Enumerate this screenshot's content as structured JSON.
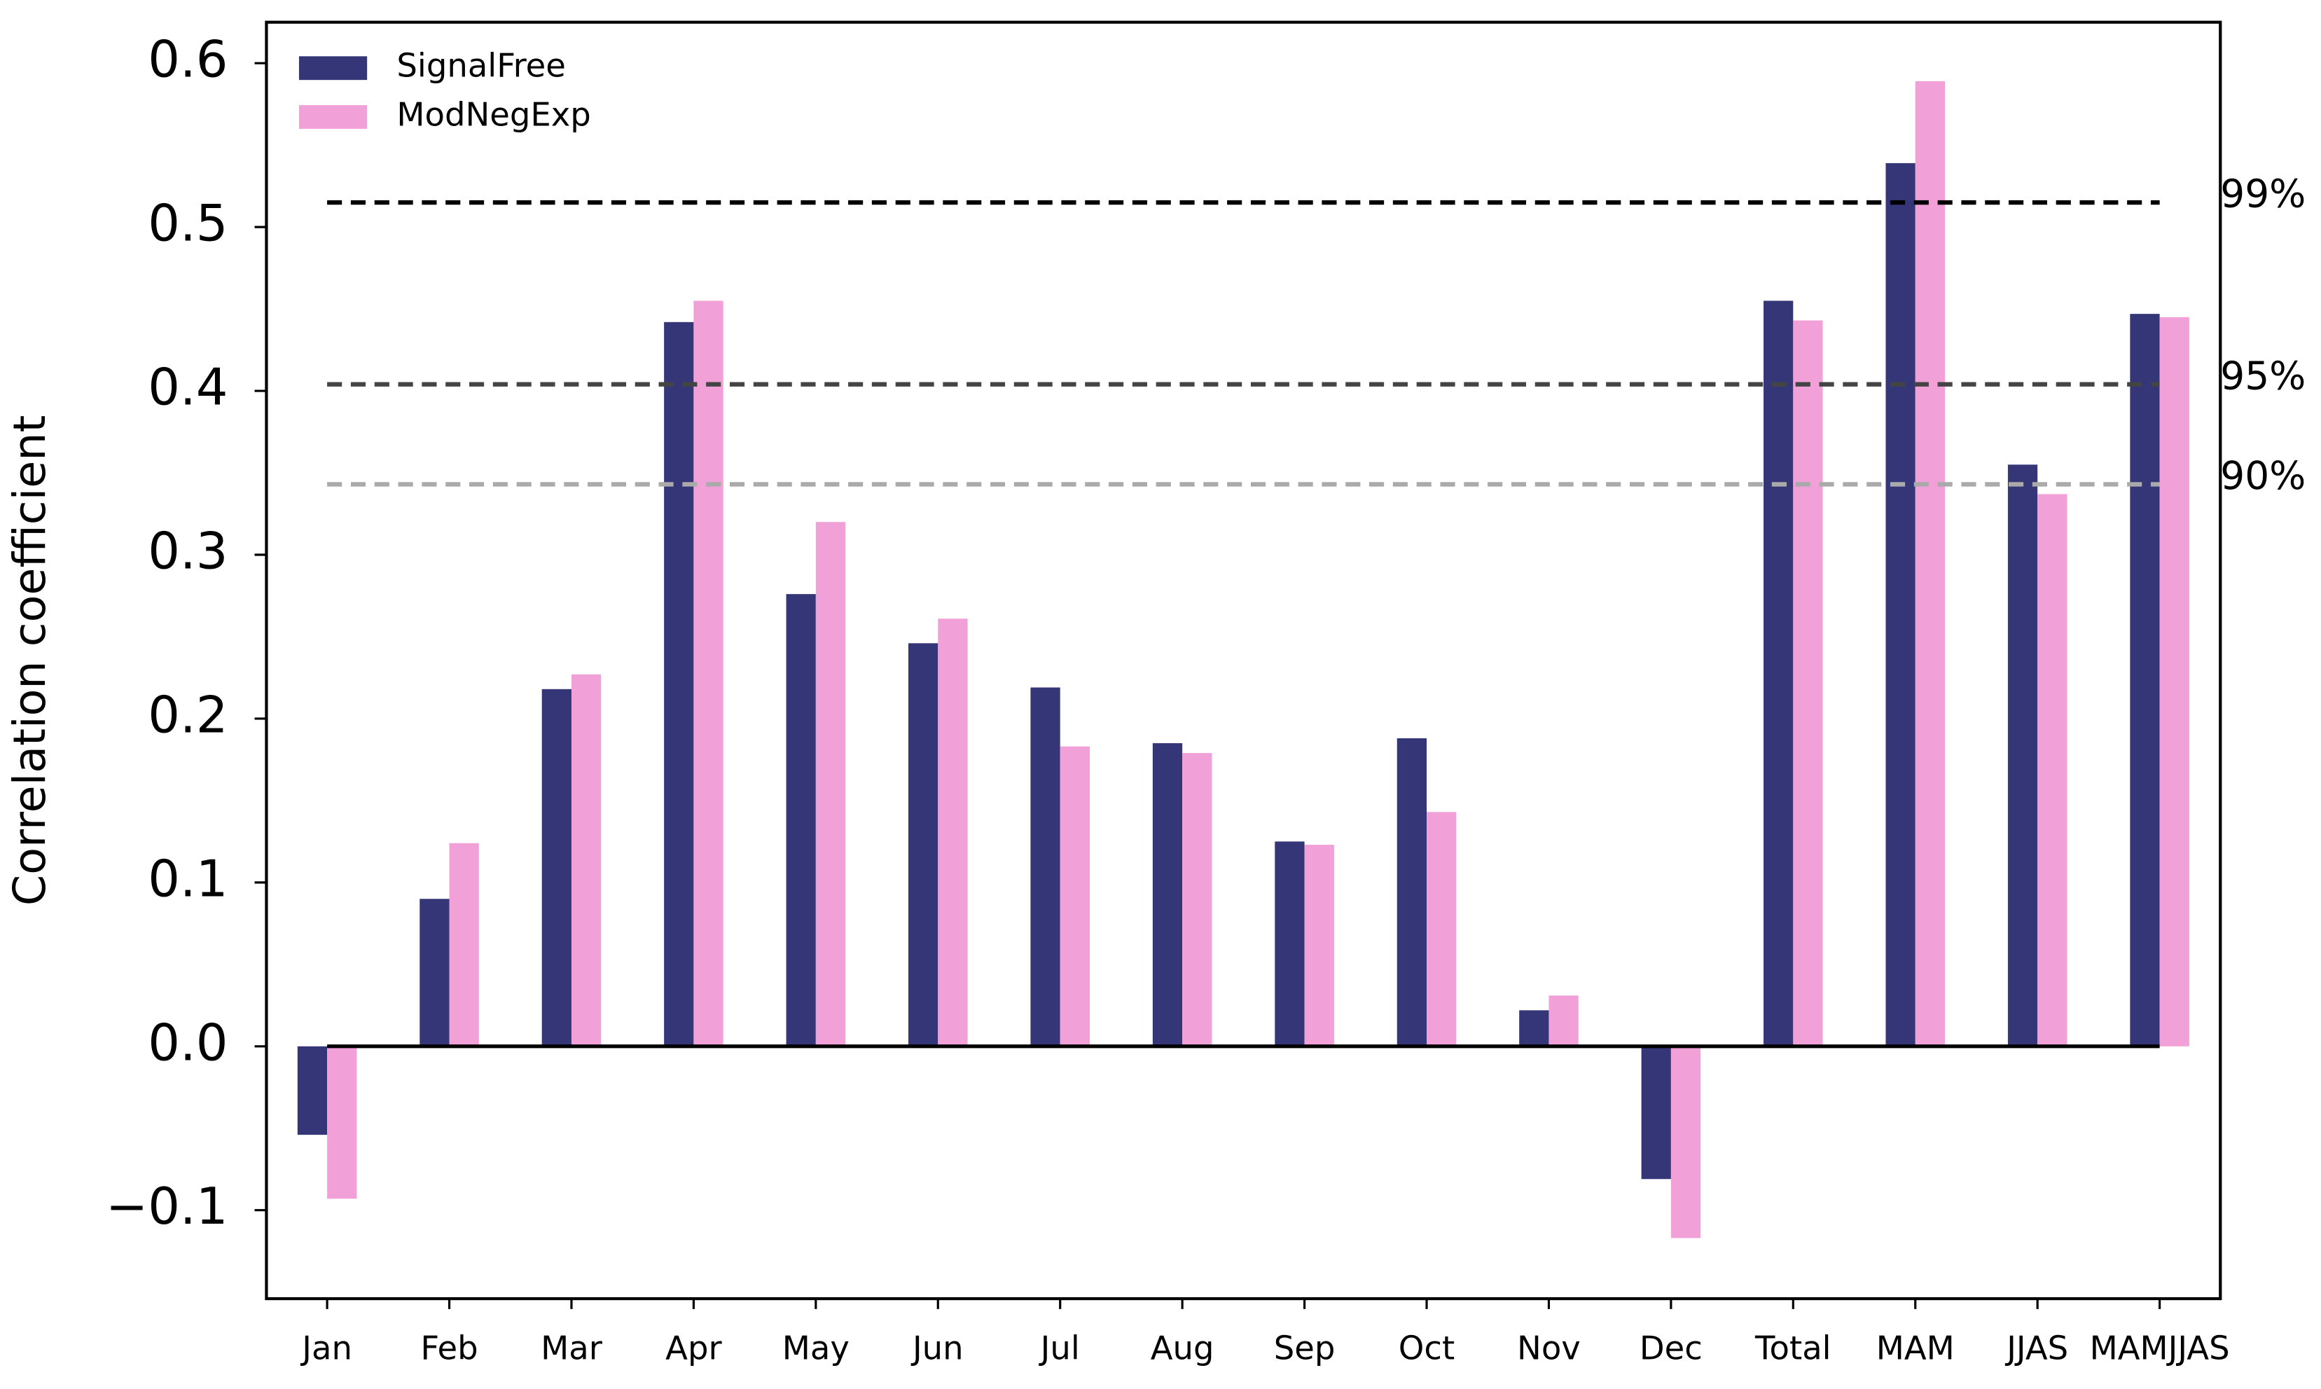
{
  "chart_data": {
    "type": "bar",
    "y_label": "Correlation coefficient",
    "categories": [
      "Jan",
      "Feb",
      "Mar",
      "Apr",
      "May",
      "Jun",
      "Jul",
      "Aug",
      "Sep",
      "Oct",
      "Nov",
      "Dec",
      "Total",
      "MAM",
      "JJAS",
      "MAMJJAS"
    ],
    "series": [
      {
        "name": "SignalFree",
        "color": "#343677",
        "values": [
          -0.054,
          0.09,
          0.218,
          0.442,
          0.276,
          0.246,
          0.219,
          0.185,
          0.125,
          0.188,
          0.022,
          -0.081,
          0.455,
          0.539,
          0.355,
          0.447
        ]
      },
      {
        "name": "ModNegExp",
        "color": "#f2a0d8",
        "values": [
          -0.093,
          0.124,
          0.227,
          0.455,
          0.32,
          0.261,
          0.183,
          0.179,
          0.123,
          0.143,
          0.031,
          -0.117,
          0.443,
          0.589,
          0.337,
          0.445
        ]
      }
    ],
    "thresholds": [
      {
        "label": "99%",
        "value": 0.515,
        "color": "#000000"
      },
      {
        "label": "95%",
        "value": 0.404,
        "color": "#444444"
      },
      {
        "label": "90%",
        "value": 0.343,
        "color": "#aaaaaa"
      }
    ],
    "ylim": [
      -0.154,
      0.625
    ],
    "yticks": [
      {
        "value": -0.1,
        "label": "−0.1"
      },
      {
        "value": 0,
        "label": "0.0"
      },
      0.1,
      0.2,
      0.3,
      0.4,
      0.5,
      0.6
    ],
    "legend": "upper left"
  }
}
